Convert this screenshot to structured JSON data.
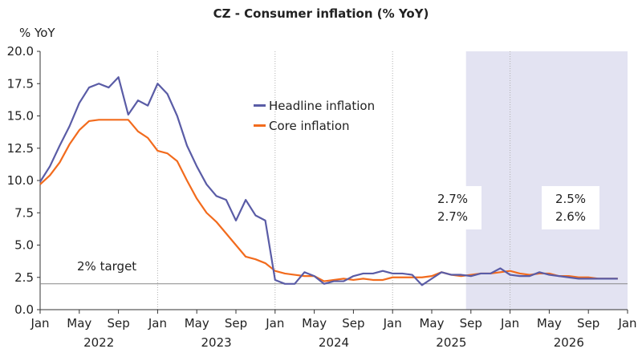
{
  "chart_data": {
    "type": "line",
    "title": "CZ - Consumer inflation (% YoY)",
    "ylabel": "% YoY",
    "xlabel": "",
    "ylim": [
      0,
      20
    ],
    "yticks": [
      "0.0",
      "2.5",
      "5.0",
      "7.5",
      "10.0",
      "12.5",
      "15.0",
      "17.5",
      "20.0"
    ],
    "ytick_values": [
      0,
      2.5,
      5,
      7.5,
      10,
      12.5,
      15,
      17.5,
      20
    ],
    "xlim": [
      0,
      60
    ],
    "xticks": [
      {
        "m": 0,
        "label": "Jan"
      },
      {
        "m": 4,
        "label": "May"
      },
      {
        "m": 8,
        "label": "Sep"
      },
      {
        "m": 12,
        "label": "Jan"
      },
      {
        "m": 16,
        "label": "May"
      },
      {
        "m": 20,
        "label": "Sep"
      },
      {
        "m": 24,
        "label": "Jan"
      },
      {
        "m": 28,
        "label": "May"
      },
      {
        "m": 32,
        "label": "Sep"
      },
      {
        "m": 36,
        "label": "Jan"
      },
      {
        "m": 40,
        "label": "May"
      },
      {
        "m": 44,
        "label": "Sep"
      },
      {
        "m": 48,
        "label": "Jan"
      },
      {
        "m": 52,
        "label": "May"
      },
      {
        "m": 56,
        "label": "Sep"
      },
      {
        "m": 60,
        "label": "Jan"
      }
    ],
    "years": [
      {
        "m": 6,
        "label": "2022"
      },
      {
        "m": 18,
        "label": "2023"
      },
      {
        "m": 30,
        "label": "2024"
      },
      {
        "m": 42,
        "label": "2025"
      },
      {
        "m": 54,
        "label": "2026"
      }
    ],
    "year_dividers": [
      12,
      24,
      36,
      48
    ],
    "forecast_start": 43.5,
    "target": {
      "value": 2,
      "label": "2% target"
    },
    "series": [
      {
        "name": "Headline inflation",
        "color": "#5a5ca6",
        "values": [
          9.9,
          11.1,
          12.7,
          14.2,
          16.0,
          17.2,
          17.5,
          17.2,
          18.0,
          15.1,
          16.2,
          15.8,
          17.5,
          16.7,
          15.0,
          12.7,
          11.1,
          9.7,
          8.8,
          8.5,
          6.9,
          8.5,
          7.3,
          6.9,
          2.3,
          2.0,
          2.0,
          2.9,
          2.6,
          2.0,
          2.2,
          2.2,
          2.6,
          2.8,
          2.8,
          3.0,
          2.8,
          2.8,
          2.7,
          1.9,
          2.4,
          2.9,
          2.7,
          2.7,
          2.6,
          2.8,
          2.8,
          3.2,
          2.7,
          2.6,
          2.6,
          2.9,
          2.7,
          2.6,
          2.5,
          2.4,
          2.4,
          2.4,
          2.4,
          2.4
        ]
      },
      {
        "name": "Core inflation",
        "color": "#f26b1d",
        "values": [
          9.7,
          10.4,
          11.4,
          12.8,
          13.9,
          14.6,
          14.7,
          14.7,
          14.7,
          14.7,
          13.8,
          13.3,
          12.3,
          12.1,
          11.5,
          10.0,
          8.6,
          7.5,
          6.8,
          5.9,
          5.0,
          4.1,
          3.9,
          3.6,
          3.0,
          2.8,
          2.7,
          2.6,
          2.6,
          2.2,
          2.3,
          2.4,
          2.3,
          2.4,
          2.3,
          2.3,
          2.5,
          2.5,
          2.5,
          2.5,
          2.6,
          2.9,
          2.7,
          2.6,
          2.7,
          2.8,
          2.8,
          2.9,
          3.0,
          2.8,
          2.7,
          2.8,
          2.8,
          2.6,
          2.6,
          2.5,
          2.5,
          2.4,
          2.4,
          2.4
        ]
      }
    ],
    "annotations": [
      {
        "id": "current",
        "lines": [
          "2.7%",
          "2.7%"
        ]
      },
      {
        "id": "forecast",
        "lines": [
          "2.5%",
          "2.6%"
        ]
      }
    ]
  }
}
